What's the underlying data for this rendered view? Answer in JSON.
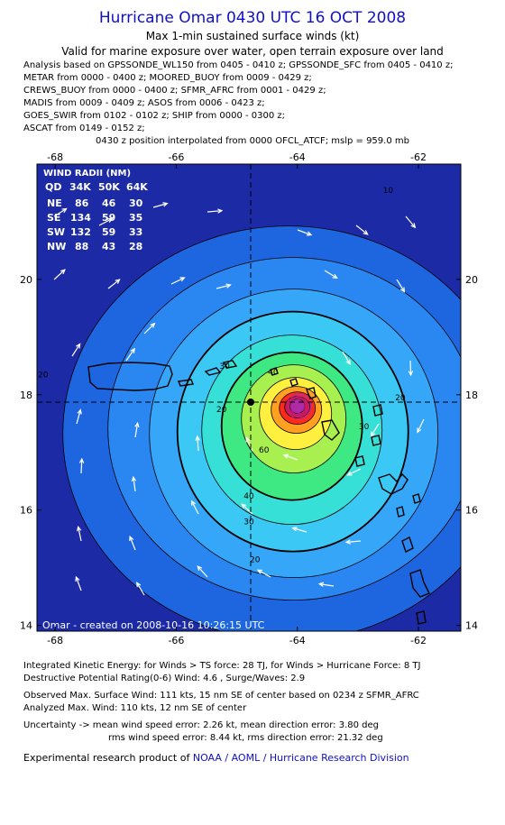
{
  "title": "Hurricane Omar 0430 UTC 16 OCT 2008",
  "subtitle": "Max 1-min sustained surface winds (kt)",
  "valid_line": "Valid for marine exposure over water, open terrain exposure over land",
  "analysis_lines": [
    "Analysis based on  GPSSONDE_WL150 from 0405 - 0410 z;  GPSSONDE_SFC from 0405 - 0410 z;",
    "METAR from 0000 - 0400 z;  MOORED_BUOY from 0009 - 0429 z;",
    "CREWS_BUOY from 0000 - 0400 z;  SFMR_AFRC from 0001 - 0429 z;",
    "MADIS from 0009 - 0409 z;  ASOS from 0006 - 0423 z;",
    "GOES_SWIR from 0102 - 0102 z;  SHIP from 0000 - 0300 z;",
    "ASCAT from 0149 - 0152 z;"
  ],
  "position_line": "0430 z position interpolated from 0000 OFCL_ATCF; mslp = 959.0 mb",
  "chart_data": {
    "type": "heatmap",
    "x_ticks": [
      "-68",
      "-66",
      "-64",
      "-62"
    ],
    "y_ticks": [
      "20",
      "18",
      "16",
      "14"
    ],
    "xlim": [
      -68.3,
      -61.3
    ],
    "ylim": [
      13.9,
      22.0
    ],
    "center": {
      "lon": -64.0,
      "lat": 17.8
    },
    "max_wind_kt": 110,
    "contour_labels": [
      {
        "value": "10",
        "lon": -62.5,
        "lat": 21.5
      },
      {
        "value": "20",
        "lon": -65.25,
        "lat": 17.7
      },
      {
        "value": "20",
        "lon": -62.3,
        "lat": 17.9
      },
      {
        "value": "20",
        "lon": -64.7,
        "lat": 15.1
      },
      {
        "value": "30",
        "lon": -65.2,
        "lat": 18.45
      },
      {
        "value": "30",
        "lon": -62.9,
        "lat": 17.4
      },
      {
        "value": "30",
        "lon": -64.8,
        "lat": 15.75
      },
      {
        "value": "40",
        "lon": -64.4,
        "lat": 18.35
      },
      {
        "value": "40",
        "lon": -64.8,
        "lat": 16.2
      },
      {
        "value": "60",
        "lon": -64.55,
        "lat": 17.0
      },
      {
        "value": "20",
        "lon": -68.2,
        "lat": 18.3
      }
    ],
    "contour_levels": [
      10,
      20,
      30,
      40,
      50,
      60,
      70,
      80,
      90,
      100,
      110
    ],
    "colors": [
      "#1c2aa6",
      "#1e66e0",
      "#2a86f0",
      "#35a6f8",
      "#3cc8f4",
      "#36e0d6",
      "#3ee882",
      "#a8f050",
      "#fff040",
      "#ffa020",
      "#ff2a1a",
      "#d81030",
      "#b02aa8"
    ],
    "wind_radii": {
      "title": "WIND RADII (NM)",
      "header": [
        "QD",
        "34K",
        "50K",
        "64K"
      ],
      "rows": [
        [
          "NE",
          "86",
          "46",
          "30"
        ],
        [
          "SE",
          "134",
          "59",
          "35"
        ],
        [
          "SW",
          "132",
          "59",
          "33"
        ],
        [
          "NW",
          "88",
          "43",
          "28"
        ]
      ]
    },
    "credit": "Omar - created on 2008-10-16 10:26:15 UTC"
  },
  "footer": {
    "ike": "Integrated Kinetic Energy:  for Winds > TS force: 28 TJ,  for Winds > Hurricane Force: 8 TJ",
    "dpr": "Destructive Potential Rating(0-6)   Wind: 4.6 , Surge/Waves: 2.9",
    "obs": "Observed Max. Surface Wind: 111 kts, 15 nm SE of center based on 0234 z SFMR_AFRC",
    "ana": "Analyzed Max. Wind: 110 kts, 12 nm SE of center",
    "unc1": "Uncertainty -> mean wind speed error: 2.26 kt,   mean direction error: 3.80 deg",
    "unc2": "rms wind speed error: 8.44 kt,   rms direction error: 21.32 deg",
    "exp": "Experimental research product of ",
    "org": "NOAA / AOML / Hurricane Research Division"
  }
}
